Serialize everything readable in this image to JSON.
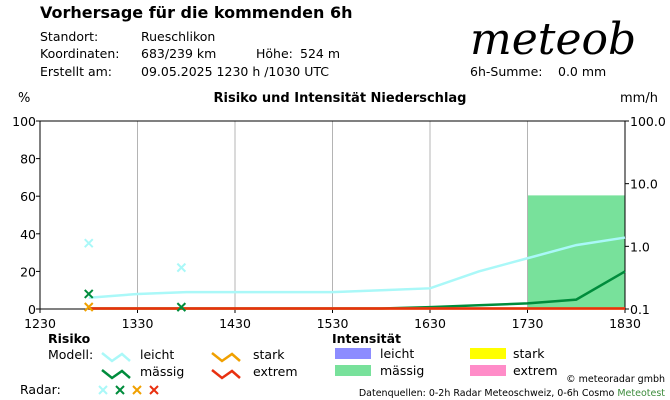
{
  "header": {
    "title": "Vorhersage für die kommenden 6h",
    "location_label": "Standort:",
    "location_value": "Rueschlikon",
    "coords_label": "Koordinaten:",
    "coords_value": "683/239 km",
    "height_label": "Höhe:",
    "height_value": "524 m",
    "created_label": "Erstellt am:",
    "created_value": "09.05.2025 1230 h /1030 UTC",
    "logo": "meteob",
    "sum_label": "6h-Summe:",
    "sum_value": "0.0 mm"
  },
  "chart_data": {
    "type": "line",
    "title": "Risiko und Intensität Niederschlag",
    "ylabel_left": "%",
    "ylabel_right": "mm/h",
    "x_ticks": [
      "1230",
      "1330",
      "1430",
      "1530",
      "1630",
      "1730",
      "1830"
    ],
    "xlim_minutes": [
      0,
      360
    ],
    "y_left_ticks": [
      "100",
      "80",
      "60",
      "40",
      "20",
      "0"
    ],
    "ylim_left": [
      0,
      100
    ],
    "y_right_ticks": [
      "100.0",
      "10.0",
      "1.0",
      "0.1"
    ],
    "ylim_right_log": [
      0.1,
      100
    ],
    "series": [
      {
        "name": "leicht",
        "color": "#aaf8f8",
        "x": [
          30,
          60,
          90,
          120,
          150,
          180,
          210,
          240,
          270,
          300,
          330,
          360
        ],
        "y": [
          6,
          8,
          9,
          9,
          9,
          9,
          10,
          11,
          20,
          27,
          34,
          38
        ]
      },
      {
        "name": "mässig",
        "color": "#008c3c",
        "x": [
          30,
          60,
          90,
          120,
          150,
          180,
          210,
          240,
          270,
          300,
          330,
          360
        ],
        "y": [
          0,
          0,
          0,
          0,
          0,
          0,
          0,
          1,
          2,
          3,
          5,
          20
        ]
      },
      {
        "name": "stark",
        "color": "#f0a000",
        "x": [
          30,
          360
        ],
        "y": [
          0,
          0
        ]
      },
      {
        "name": "extrem",
        "color": "#e83010",
        "x": [
          30,
          360
        ],
        "y": [
          0,
          0
        ]
      }
    ],
    "radar_points": [
      {
        "x": 30,
        "y": 35,
        "color": "#aaf8f8"
      },
      {
        "x": 30,
        "y": 8,
        "color": "#008c3c"
      },
      {
        "x": 30,
        "y": 0,
        "color": "#f0a000"
      },
      {
        "x": 87,
        "y": 22,
        "color": "#aaf8f8"
      },
      {
        "x": 87,
        "y": 1,
        "color": "#008c3c"
      }
    ],
    "intensity_bars": [
      {
        "x_start": 300,
        "x_end": 360,
        "value_mmh": 6.5,
        "color": "#78e19b"
      }
    ]
  },
  "legend": {
    "risk_title": "Risiko",
    "model_label": "Modell:",
    "radar_label": "Radar:",
    "intensity_title": "Intensität",
    "risk_items": [
      {
        "label": "leicht",
        "color": "#aaf8f8"
      },
      {
        "label": "mässig",
        "color": "#008c3c"
      },
      {
        "label": "stark",
        "color": "#f0a000"
      },
      {
        "label": "extrem",
        "color": "#e83010"
      }
    ],
    "intensity_items": [
      {
        "label": "leicht",
        "color": "#8c8cff"
      },
      {
        "label": "mässig",
        "color": "#78e19b"
      },
      {
        "label": "stark",
        "color": "#ffff00"
      },
      {
        "label": "extrem",
        "color": "#ff8cc8"
      }
    ]
  },
  "footer": {
    "copyright": "© meteoradar gmbh",
    "sources_prefix": "Datenquellen: 0-2h Radar Meteoschweiz, 0-6h Cosmo ",
    "sources_brand": "Meteotest",
    "brand_color": "#3c8c3c"
  }
}
